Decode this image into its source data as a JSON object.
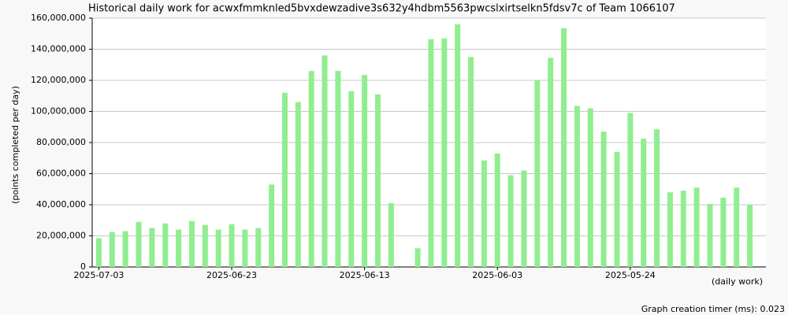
{
  "chart_data": {
    "type": "bar",
    "title": "Historical daily work for acwxfmmknled5bvxdewzadive3s632y4hdbm5563pwcslxirtselkn5fdsv7c of Team 1066107",
    "y_label": "(points completed per day)",
    "x_label": "(daily work)",
    "footer": "Graph creation timer (ms): 0.023",
    "categories": [
      "2025-07-03",
      null,
      null,
      null,
      null,
      null,
      null,
      null,
      null,
      null,
      "2025-06-23",
      null,
      null,
      null,
      null,
      null,
      null,
      null,
      null,
      null,
      "2025-06-13",
      null,
      null,
      null,
      null,
      null,
      null,
      null,
      null,
      null,
      "2025-06-03",
      null,
      null,
      null,
      null,
      null,
      null,
      null,
      null,
      null,
      "2025-05-24",
      null,
      null,
      null,
      null,
      null,
      null,
      null,
      null,
      null
    ],
    "values": [
      18500000,
      22500000,
      23000000,
      29000000,
      25000000,
      28000000,
      24000000,
      29500000,
      27000000,
      24000000,
      27500000,
      24000000,
      25000000,
      53000000,
      112000000,
      106000000,
      126000000,
      136000000,
      126000000,
      113000000,
      123500000,
      111000000,
      41000000,
      null,
      12000000,
      146500000,
      147000000,
      156000000,
      135000000,
      68500000,
      73000000,
      59000000,
      62000000,
      120000000,
      134500000,
      153500000,
      103500000,
      102000000,
      87000000,
      74000000,
      99000000,
      82500000,
      88500000,
      48000000,
      49000000,
      51000000,
      40500000,
      44500000,
      51000000,
      40000000
    ],
    "color": "#90ee90",
    "ylim": [
      0,
      160000000
    ],
    "yticks": [
      0,
      {
        "value": 20000000,
        "label": "20,000,000"
      },
      {
        "value": 40000000,
        "label": "40,000,000"
      },
      {
        "value": 60000000,
        "label": "60,000,000"
      },
      {
        "value": 80000000,
        "label": "80,000,000"
      },
      {
        "value": 100000000,
        "label": "100,000,000"
      },
      {
        "value": 120000000,
        "label": "120,000,000"
      },
      {
        "value": 140000000,
        "label": "140,000,000"
      },
      {
        "value": 160000000,
        "label": "160,000,000"
      }
    ],
    "grid": true
  }
}
